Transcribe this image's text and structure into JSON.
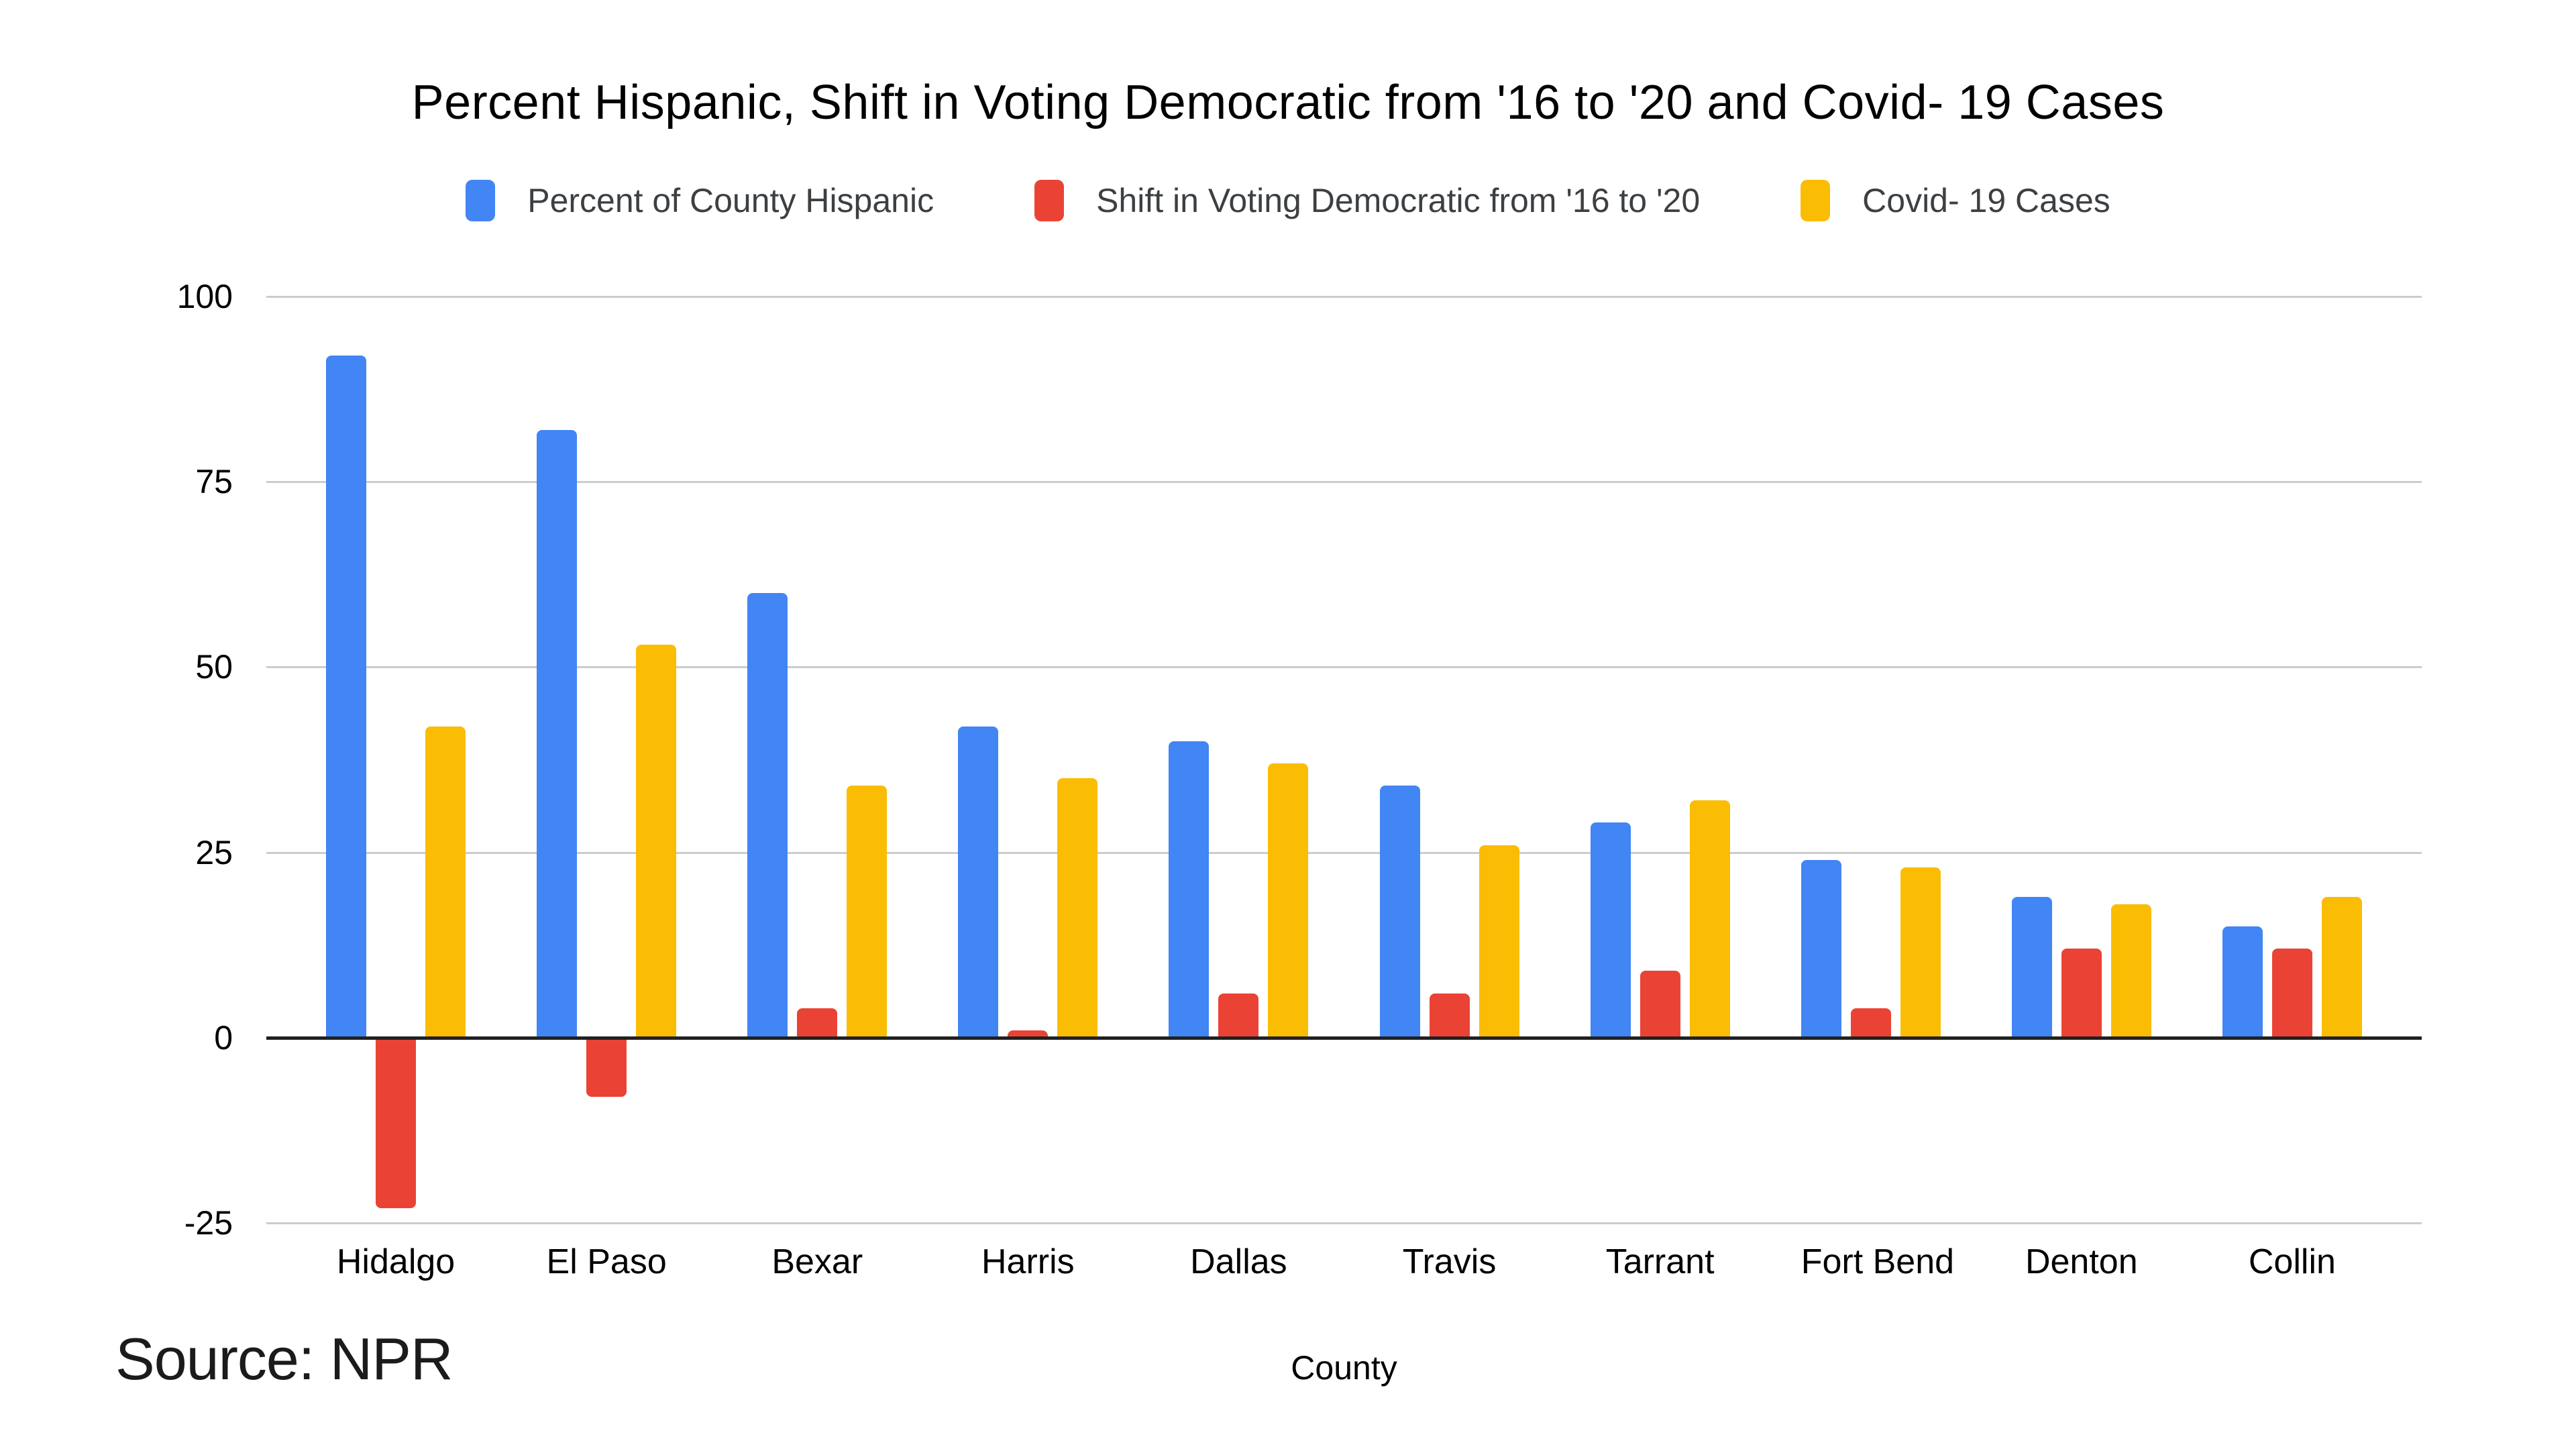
{
  "source_note": "Source: NPR",
  "palette": {
    "blue": "#4285F4",
    "red": "#EA4335",
    "yellow": "#FBBC04",
    "gridline": "#cccccc",
    "zero_axis": "#212121",
    "text": "#000000",
    "legend_text": "#3c4043"
  },
  "chart_data": {
    "type": "bar",
    "title": "Percent Hispanic, Shift in Voting Democratic from '16 to '20 and Covid- 19 Cases",
    "xlabel": "County",
    "ylabel": "",
    "ylim": [
      -25,
      100
    ],
    "yticks": [
      100,
      75,
      50,
      25,
      0,
      -25
    ],
    "grid": true,
    "legend_position": "top",
    "categories": [
      "Hidalgo",
      "El Paso",
      "Bexar",
      "Harris",
      "Dallas",
      "Travis",
      "Tarrant",
      "Fort Bend",
      "Denton",
      "Collin"
    ],
    "series": [
      {
        "name": "Percent of County Hispanic",
        "color": "#4285F4",
        "values": [
          92,
          82,
          60,
          42,
          40,
          34,
          29,
          24,
          19,
          15
        ]
      },
      {
        "name": "Shift in Voting Democratic from '16 to '20",
        "color": "#EA4335",
        "values": [
          -23,
          -8,
          4,
          1,
          6,
          6,
          9,
          4,
          12,
          12
        ]
      },
      {
        "name": "Covid- 19 Cases",
        "color": "#FBBC04",
        "values": [
          42,
          53,
          34,
          35,
          37,
          26,
          32,
          23,
          18,
          19
        ]
      }
    ]
  }
}
